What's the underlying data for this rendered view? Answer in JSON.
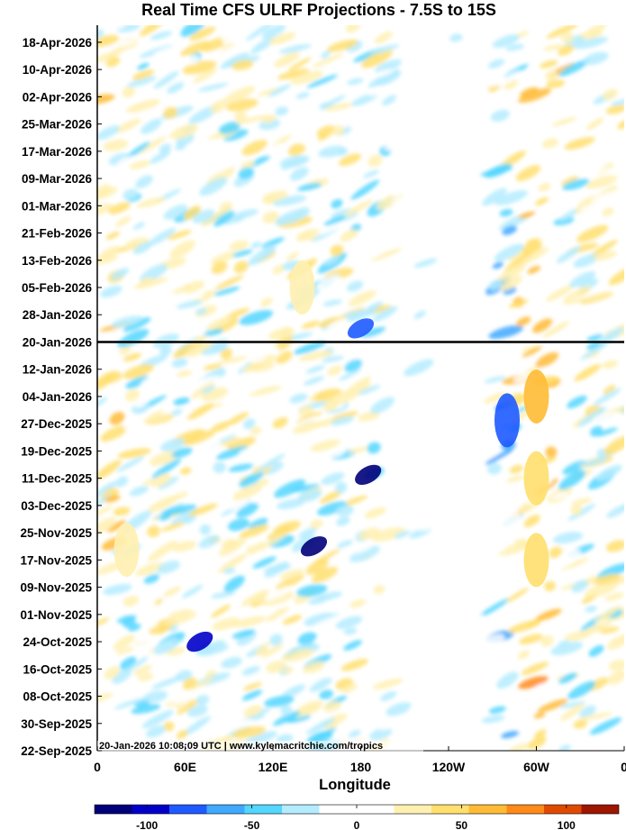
{
  "chart_data": {
    "type": "heatmap",
    "title": "Real Time CFS ULRF Projections - 7.5S to 15S",
    "xlabel": "Longitude",
    "ylabel": "",
    "x_ticks": [
      "0",
      "60E",
      "120E",
      "180",
      "120W",
      "60W",
      "0"
    ],
    "x_tick_degrees_east": [
      0,
      60,
      120,
      180,
      240,
      300,
      360
    ],
    "xlim_degrees_east": [
      0,
      360
    ],
    "y_ticks": [
      "22-Sep-2025",
      "30-Sep-2025",
      "08-Oct-2025",
      "16-Oct-2025",
      "24-Oct-2025",
      "01-Nov-2025",
      "09-Nov-2025",
      "17-Nov-2025",
      "25-Nov-2025",
      "03-Dec-2025",
      "11-Dec-2025",
      "19-Dec-2025",
      "27-Dec-2025",
      "04-Jan-2026",
      "12-Jan-2026",
      "20-Jan-2026",
      "28-Jan-2026",
      "05-Feb-2026",
      "13-Feb-2026",
      "21-Feb-2026",
      "01-Mar-2026",
      "09-Mar-2026",
      "17-Mar-2026",
      "25-Mar-2026",
      "02-Apr-2026",
      "10-Apr-2026",
      "18-Apr-2026"
    ],
    "ylim": [
      "22-Sep-2025",
      "23-Apr-2026"
    ],
    "current_date_line": "20-Jan-2026",
    "colorbar": {
      "ticks": [
        -100,
        -50,
        0,
        50,
        100
      ],
      "range": [
        -125,
        125
      ],
      "colors": [
        "#00007a",
        "#0000c8",
        "#1e5aff",
        "#3fa8ff",
        "#53d6ff",
        "#b4ecff",
        "#ffffff",
        "#ffffff",
        "#fff0b0",
        "#ffdf6e",
        "#ffbb35",
        "#ff8a18",
        "#e04a00",
        "#9e1500"
      ]
    },
    "features": [
      {
        "lon": 300,
        "date": "2026-01-04",
        "value": 55
      },
      {
        "lon": 300,
        "date": "2025-12-11",
        "value": 50
      },
      {
        "lon": 300,
        "date": "2025-11-17",
        "value": 52
      },
      {
        "lon": 180,
        "date": "2026-01-24",
        "value": -85
      },
      {
        "lon": 185,
        "date": "2025-12-12",
        "value": -115
      },
      {
        "lon": 148,
        "date": "2025-11-21",
        "value": -115
      },
      {
        "lon": 70,
        "date": "2025-10-24",
        "value": -95
      },
      {
        "lon": 280,
        "date": "2025-12-28",
        "value": -75
      },
      {
        "lon": 20,
        "date": "2025-11-20",
        "value": 30
      },
      {
        "lon": 140,
        "date": "2026-02-05",
        "value": 30
      }
    ]
  },
  "footer_text": "20-Jan-2026 10:08:09 UTC | www.kylemacritchie.com/tropics"
}
